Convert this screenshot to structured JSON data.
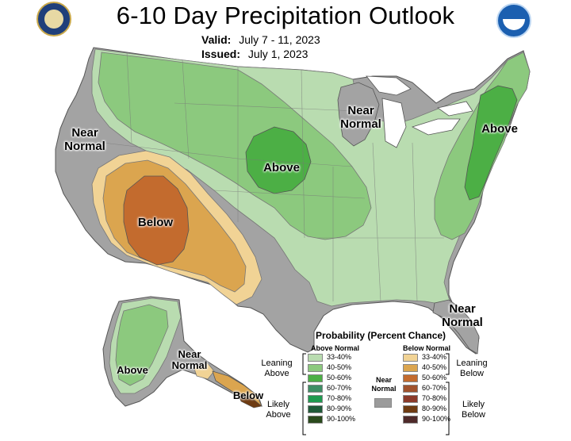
{
  "header": {
    "title": "6-10 Day Precipitation Outlook",
    "valid_label": "Valid:",
    "valid_dates": "July 7 - 11, 2023",
    "issued_label": "Issued:",
    "issued_date": "July 1, 2023"
  },
  "logos": {
    "left": "Department of Commerce seal",
    "right": "NOAA"
  },
  "map_labels": {
    "near_normal_west_1": "Near",
    "near_normal_west_2": "Normal",
    "below_sw": "Below",
    "above_plains": "Above",
    "near_normal_gl_1": "Near",
    "near_normal_gl_2": "Normal",
    "above_ne": "Above",
    "near_normal_fl_1": "Near",
    "near_normal_fl_2": "Normal",
    "ak_above": "Above",
    "ak_near_1": "Near",
    "ak_near_2": "Normal",
    "ak_below": "Below"
  },
  "legend": {
    "title": "Probability (Percent Chance)",
    "above_header": "Above Normal",
    "below_header": "Below Normal",
    "near_normal_1": "Near",
    "near_normal_2": "Normal",
    "leaning_above_1": "Leaning",
    "leaning_above_2": "Above",
    "likely_above_1": "Likely",
    "likely_above_2": "Above",
    "leaning_below_1": "Leaning",
    "leaning_below_2": "Below",
    "likely_below_1": "Likely",
    "likely_below_2": "Below",
    "above_classes": [
      {
        "label": "33-40%",
        "color": "#b9dcb0"
      },
      {
        "label": "40-50%",
        "color": "#8cc97e"
      },
      {
        "label": "50-60%",
        "color": "#4caf45"
      },
      {
        "label": "60-70%",
        "color": "#3e8e64"
      },
      {
        "label": "70-80%",
        "color": "#1f9a4f"
      },
      {
        "label": "80-90%",
        "color": "#1f5a38"
      },
      {
        "label": "90-100%",
        "color": "#2a4a1c"
      }
    ],
    "below_classes": [
      {
        "label": "33-40%",
        "color": "#f1d395"
      },
      {
        "label": "40-50%",
        "color": "#dba54f"
      },
      {
        "label": "50-60%",
        "color": "#c36b2e"
      },
      {
        "label": "60-70%",
        "color": "#a0522d"
      },
      {
        "label": "70-80%",
        "color": "#8b3a2a"
      },
      {
        "label": "80-90%",
        "color": "#6e3b12"
      },
      {
        "label": "90-100%",
        "color": "#4e2a2a"
      }
    ],
    "near_color": "#9b9b9b"
  }
}
